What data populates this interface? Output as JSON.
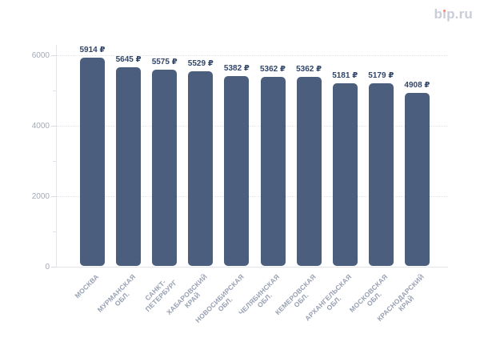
{
  "logo": {
    "text": "bip.ru",
    "before_i": "b",
    "i_base": "ı",
    "after_i": "p.ru",
    "color": "#c9cdd9",
    "dot_color": "#f08a70"
  },
  "chart_data": {
    "type": "bar",
    "title": "",
    "xlabel": "",
    "ylabel": "",
    "categories": [
      "МОСКВА",
      "МУРМАНСКАЯ ОБЛ.",
      "САНКТ-ПЕТЕРБУРГ",
      "ХАБАРОВСКИЙ КРАЙ",
      "НОВОСИБИРСКАЯ ОБЛ.",
      "ЧЕЛЯБИНСКАЯ ОБЛ.",
      "КЕМЕРОВСКАЯ ОБЛ.",
      "АРХАНГЕЛЬСКАЯ ОБЛ.",
      "МОСКОВСКАЯ ОБЛ.",
      "КРАСНОДАРСКИЙ КРАЙ"
    ],
    "category_lines": [
      [
        "МОСКВА"
      ],
      [
        "МУРМАНСКАЯ",
        "ОБЛ."
      ],
      [
        "САНКТ-",
        "ПЕТЕРБУРГ"
      ],
      [
        "ХАБАРОВСКИЙ",
        "КРАЙ"
      ],
      [
        "НОВОСИБИРСКАЯ",
        "ОБЛ."
      ],
      [
        "ЧЕЛЯБИНСКАЯ",
        "ОБЛ."
      ],
      [
        "КЕМЕРОВСКАЯ",
        "ОБЛ."
      ],
      [
        "АРХАНГЕЛЬСКАЯ",
        "ОБЛ."
      ],
      [
        "МОСКОВСКАЯ",
        "ОБЛ."
      ],
      [
        "КРАСНОДАРСКИЙ",
        "КРАЙ"
      ]
    ],
    "values": [
      5914,
      5645,
      5575,
      5529,
      5382,
      5362,
      5362,
      5181,
      5179,
      4908
    ],
    "bar_labels": [
      "5914 ₽",
      "5645 ₽",
      "5575 ₽",
      "5529 ₽",
      "5382 ₽",
      "5362 ₽",
      "5362 ₽",
      "5181 ₽",
      "5179 ₽",
      "4908 ₽"
    ],
    "currency": "₽",
    "ylim": [
      0,
      6000
    ],
    "y_major_ticks": [
      0,
      2000,
      4000,
      6000
    ],
    "y_minor_ticks": [
      1000,
      3000,
      5000
    ],
    "grid": "horizontal dotted lines at major ticks",
    "legend": null,
    "bar_color": "#4b5e7e",
    "value_label_color": "#314669",
    "y_axis_label_color": "#a3a9b8",
    "category_label_color": "#98a0b2"
  }
}
